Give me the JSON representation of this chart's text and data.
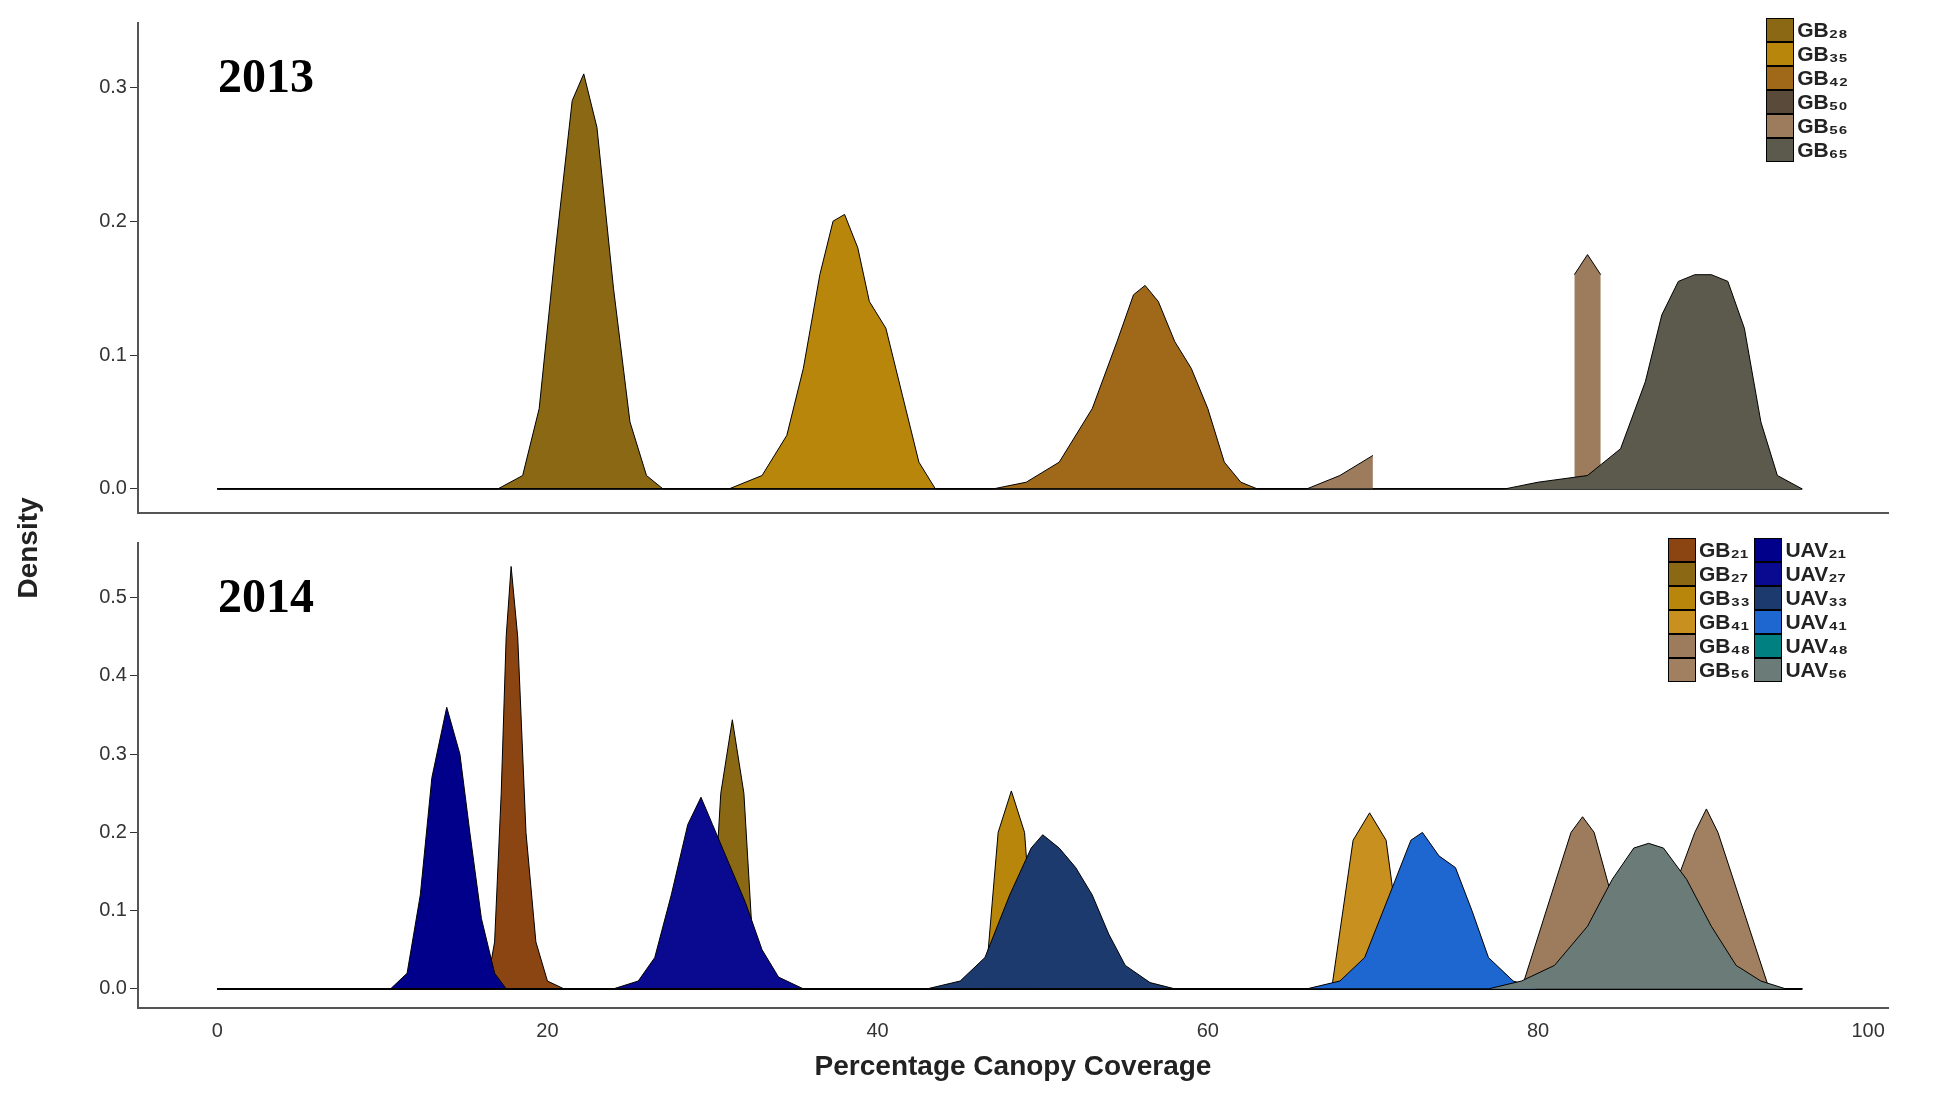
{
  "chart_data": [
    {
      "type": "area",
      "title": "2013",
      "ylabel": "Density",
      "xlim": [
        -4.8,
        101.2
      ],
      "ylim": [
        -0.018,
        0.348
      ],
      "yticks": [
        {
          "value": 0,
          "label": "0.0"
        },
        {
          "value": 0.1,
          "label": "0.1"
        },
        {
          "value": 0.2,
          "label": "0.2"
        },
        {
          "value": 0.3,
          "label": "0.3"
        }
      ],
      "tick_labels": "y",
      "legend": "top right",
      "series": [
        {
          "name": "GB₂₈",
          "color": "#8b6914",
          "x": [
            0,
            17,
            18.5,
            19.5,
            20.5,
            21.5,
            22.2,
            23,
            24,
            25,
            26,
            27,
            96
          ],
          "values": [
            0,
            0,
            0.01,
            0.06,
            0.18,
            0.29,
            0.31,
            0.27,
            0.15,
            0.05,
            0.01,
            0,
            0
          ]
        },
        {
          "name": "GB₃₅",
          "color": "#b8860b",
          "x": [
            0,
            31,
            33,
            34.5,
            35.5,
            36.5,
            37.3,
            38,
            38.8,
            39.5,
            40.5,
            41.5,
            42.5,
            43.5,
            96
          ],
          "values": [
            0,
            0,
            0.01,
            0.04,
            0.09,
            0.16,
            0.2,
            0.205,
            0.18,
            0.14,
            0.12,
            0.07,
            0.02,
            0,
            0
          ]
        },
        {
          "name": "GB₄₂",
          "color": "#a0691a",
          "x": [
            0,
            47,
            49,
            51,
            53,
            54.5,
            55.5,
            56.2,
            57,
            58,
            59,
            60,
            61,
            62,
            63,
            96
          ],
          "values": [
            0,
            0,
            0.005,
            0.02,
            0.06,
            0.11,
            0.145,
            0.152,
            0.14,
            0.11,
            0.09,
            0.06,
            0.02,
            0.005,
            0,
            0
          ]
        },
        {
          "name": "GB₅₀",
          "color": "#5a4a3a"
        },
        {
          "name": "GB₅₆",
          "color": "#9c7c5c",
          "x": [
            0,
            66,
            68,
            70,
            76,
            82.2,
            83,
            83.8
          ],
          "values": [
            0,
            0,
            0.01,
            0.025,
            null,
            0.16,
            0.175,
            0.16
          ]
        },
        {
          "name": "GB₆₅",
          "color": "#5b5a4c",
          "x": [
            0,
            78,
            80,
            83,
            85,
            86.5,
            87.5,
            88.5,
            89.5,
            90.5,
            91.5,
            92.5,
            93.5,
            94.5,
            96
          ],
          "values": [
            0,
            0,
            0.005,
            0.01,
            0.03,
            0.08,
            0.13,
            0.155,
            0.16,
            0.16,
            0.155,
            0.12,
            0.05,
            0.01,
            0
          ]
        }
      ]
    },
    {
      "type": "area",
      "title": "2014",
      "xlabel": "Percentage Canopy Coverage",
      "xlim": [
        -4.8,
        101.2
      ],
      "ylim": [
        -0.025,
        0.57
      ],
      "xticks": [
        0,
        20,
        40,
        60,
        80,
        100
      ],
      "yticks": [
        {
          "value": 0,
          "label": "0.0"
        },
        {
          "value": 0.1,
          "label": "0.1"
        },
        {
          "value": 0.2,
          "label": "0.2"
        },
        {
          "value": 0.3,
          "label": "0.3"
        },
        {
          "value": 0.4,
          "label": "0.4"
        },
        {
          "value": 0.5,
          "label": "0.5"
        }
      ],
      "legend": "top right",
      "series": [
        {
          "name": "GB₂₁",
          "color": "#8b4513",
          "x": [
            0,
            16.3,
            16.8,
            17.2,
            17.5,
            17.8,
            18.2,
            18.7,
            19.3,
            20,
            21,
            96
          ],
          "values": [
            0,
            0,
            0.06,
            0.25,
            0.45,
            0.54,
            0.45,
            0.2,
            0.06,
            0.01,
            0,
            0
          ]
        },
        {
          "name": "GB₂₇",
          "color": "#8b6914",
          "x": [
            0,
            29.8,
            30.5,
            31.2,
            31.9,
            32.6,
            96
          ],
          "values": [
            0,
            0,
            0.25,
            0.344,
            0.25,
            0,
            0
          ]
        },
        {
          "name": "GB₃₃",
          "color": "#b8860b",
          "x": [
            0,
            46.5,
            47.3,
            48.1,
            48.9,
            49.6,
            96
          ],
          "values": [
            0,
            0,
            0.2,
            0.253,
            0.2,
            0,
            0
          ]
        },
        {
          "name": "GB₄₁",
          "color": "#c8901e",
          "x": [
            0,
            67.5,
            68.8,
            69.8,
            70.8,
            72,
            96
          ],
          "values": [
            0,
            0,
            0.19,
            0.225,
            0.19,
            0,
            0
          ]
        },
        {
          "name": "GB₄₈",
          "color": "#9c7c5c",
          "x": [
            0,
            79,
            82,
            82.7,
            83.4,
            86,
            96
          ],
          "values": [
            0,
            0,
            0.2,
            0.22,
            0.2,
            0,
            0
          ]
        },
        {
          "name": "GB₅₆",
          "color": "#a08060",
          "x": [
            0,
            86,
            89.5,
            90.2,
            90.9,
            94,
            96
          ],
          "values": [
            0,
            0,
            0.2,
            0.23,
            0.2,
            0,
            0
          ]
        },
        {
          "name": "UAV₂₁",
          "color": "#00008b",
          "x": [
            0,
            10.5,
            11.5,
            12.3,
            13,
            13.9,
            14.7,
            15.3,
            16,
            16.8,
            17.5,
            96
          ],
          "values": [
            0,
            0,
            0.02,
            0.12,
            0.27,
            0.36,
            0.3,
            0.2,
            0.09,
            0.02,
            0,
            0
          ]
        },
        {
          "name": "UAV₂₇",
          "color": "#0a0a90",
          "x": [
            0,
            24,
            25.5,
            26.5,
            27.5,
            28.5,
            29.3,
            30,
            31,
            32,
            33,
            34,
            35.5,
            96
          ],
          "values": [
            0,
            0,
            0.01,
            0.04,
            0.12,
            0.21,
            0.245,
            0.21,
            0.16,
            0.11,
            0.05,
            0.015,
            0,
            0
          ]
        },
        {
          "name": "UAV₃₃",
          "color": "#1c3a6e",
          "x": [
            0,
            43,
            45,
            46.5,
            48,
            49.3,
            50,
            51,
            52,
            53,
            54,
            55,
            56.5,
            58,
            96
          ],
          "values": [
            0,
            0,
            0.01,
            0.04,
            0.12,
            0.18,
            0.197,
            0.18,
            0.155,
            0.12,
            0.07,
            0.03,
            0.008,
            0,
            0
          ]
        },
        {
          "name": "UAV₄₁",
          "color": "#1e66d0",
          "x": [
            0,
            66,
            68,
            69.5,
            71,
            72.3,
            73,
            74,
            75,
            76,
            77,
            78.5,
            80,
            96
          ],
          "values": [
            0,
            0,
            0.01,
            0.04,
            0.12,
            0.19,
            0.2,
            0.17,
            0.155,
            0.1,
            0.04,
            0.01,
            0,
            0
          ]
        },
        {
          "name": "UAV₄₈",
          "color": "#008080"
        },
        {
          "name": "UAV₅₆",
          "color": "#6b7b78",
          "x": [
            0,
            77,
            79,
            81,
            83,
            84.5,
            85.8,
            86.7,
            87.6,
            89,
            90.5,
            92,
            93.5,
            95,
            96
          ],
          "values": [
            0,
            0,
            0.01,
            0.03,
            0.08,
            0.14,
            0.18,
            0.186,
            0.18,
            0.14,
            0.08,
            0.03,
            0.01,
            0,
            0
          ]
        }
      ]
    }
  ]
}
